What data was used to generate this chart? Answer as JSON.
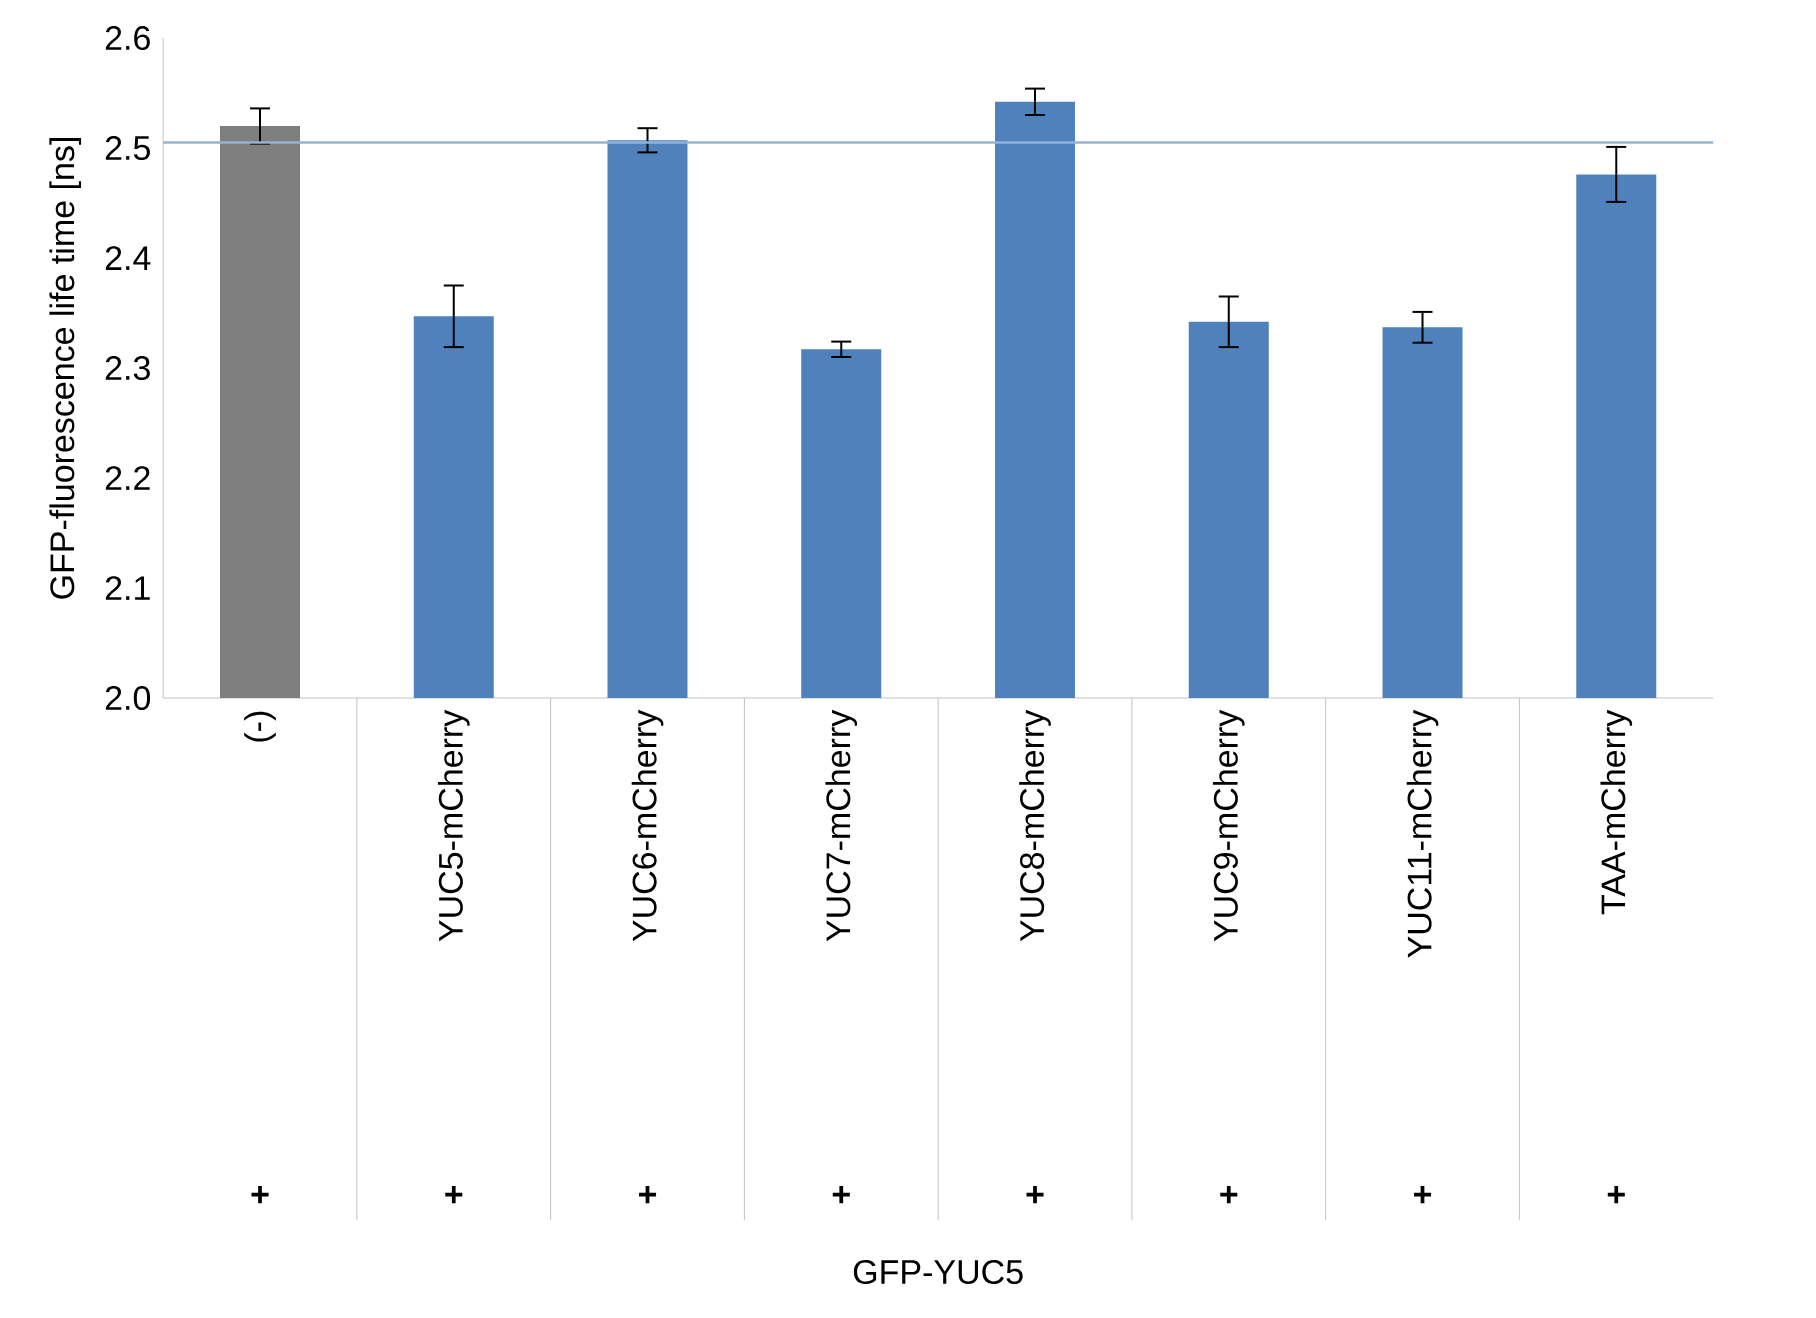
{
  "chart_data": {
    "type": "bar",
    "categories": [
      "(-)",
      "YUC5-mCherry",
      "YUC6-mCherry",
      "YUC7-mCherry",
      "YUC8-mCherry",
      "YUC9-mCherry",
      "YUC11-mCherry",
      "TAA-mCherry"
    ],
    "values": [
      2.52,
      2.347,
      2.507,
      2.317,
      2.542,
      2.342,
      2.337,
      2.476
    ],
    "errors": [
      0.016,
      0.028,
      0.011,
      0.007,
      0.012,
      0.023,
      0.014,
      0.025
    ],
    "colors": [
      "#7f7f7f",
      "#4f81bd",
      "#4f81bd",
      "#4f81bd",
      "#4f81bd",
      "#4f81bd",
      "#4f81bd",
      "#4f81bd"
    ],
    "ylabel": "GFP-fluorescence life time [ns]",
    "ylim": [
      2.0,
      2.6
    ],
    "yticks": [
      {
        "value": 2.0,
        "label": "2.0"
      },
      2.1,
      2.2,
      2.3,
      2.4,
      2.5,
      2.6
    ],
    "ref_lines": [
      {
        "axis": "y",
        "value": 2.505,
        "color": "#95b3d7"
      }
    ],
    "annotations": [
      "+",
      "+",
      "+",
      "+",
      "+",
      "+",
      "+",
      "+",
      "GFP-YUC5"
    ],
    "grid": false
  }
}
